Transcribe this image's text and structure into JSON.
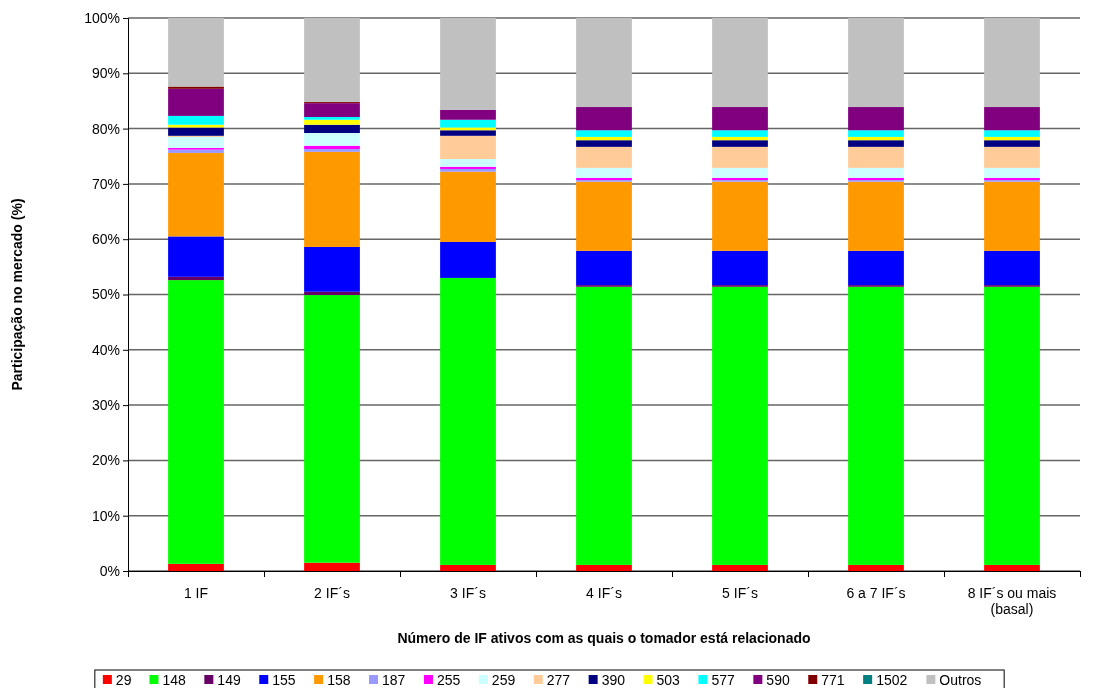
{
  "chart_data": {
    "type": "bar",
    "stacked": true,
    "xlabel": "Número de IF ativos com as quais o tomador está relacionado",
    "ylabel": "Participação no mercado (%)",
    "categories": [
      "1 IF",
      "2 IF´s",
      "3 IF´s",
      "4 IF´s",
      "5 IF´s",
      "6 a 7 IF´s",
      "8 IF´s ou mais\n(basal)"
    ],
    "ylim": [
      0,
      100
    ],
    "yticks": [
      {
        "value": 0,
        "label": "0%"
      },
      {
        "value": 10,
        "label": "10%"
      },
      {
        "value": 20,
        "label": "20%"
      },
      {
        "value": 30,
        "label": "30%"
      },
      {
        "value": 40,
        "label": "40%"
      },
      {
        "value": 50,
        "label": "50%"
      },
      {
        "value": 60,
        "label": "60%"
      },
      {
        "value": 70,
        "label": "70%"
      },
      {
        "value": 80,
        "label": "80%"
      },
      {
        "value": 90,
        "label": "90%"
      },
      {
        "value": 100,
        "label": "100%"
      }
    ],
    "grid": "y",
    "legend": "bottom",
    "series": [
      {
        "name": "29",
        "color": "#ff0000",
        "values": [
          1.3,
          1.5,
          1.1,
          1.1,
          1.1,
          1.1,
          1.1
        ]
      },
      {
        "name": "148",
        "color": "#00ff00",
        "values": [
          51.3,
          48.4,
          51.9,
          50.3,
          50.3,
          50.3,
          50.3
        ]
      },
      {
        "name": "149",
        "color": "#660066",
        "values": [
          0.6,
          0.6,
          0,
          0.3,
          0.3,
          0.3,
          0.3
        ]
      },
      {
        "name": "155",
        "color": "#0000ff",
        "values": [
          7.3,
          8.1,
          6.5,
          6.2,
          6.2,
          6.2,
          6.2
        ]
      },
      {
        "name": "158",
        "color": "#ff9900",
        "values": [
          15.1,
          17.2,
          12.7,
          12.5,
          12.5,
          12.5,
          12.5
        ]
      },
      {
        "name": "187",
        "color": "#9999ff",
        "values": [
          0.6,
          0.5,
          0.5,
          0.3,
          0.3,
          0.3,
          0.3
        ]
      },
      {
        "name": "255",
        "color": "#ff00ff",
        "values": [
          0.3,
          0.6,
          0.4,
          0.4,
          0.4,
          0.4,
          0.4
        ]
      },
      {
        "name": "259",
        "color": "#ccffff",
        "values": [
          2.0,
          2.3,
          1.4,
          1.8,
          1.8,
          1.8,
          1.8
        ]
      },
      {
        "name": "277",
        "color": "#ffcc99",
        "values": [
          0.2,
          0,
          4.2,
          3.8,
          3.8,
          3.8,
          3.8
        ]
      },
      {
        "name": "390",
        "color": "#000080",
        "values": [
          1.5,
          1.5,
          1.0,
          1.2,
          1.2,
          1.2,
          1.2
        ]
      },
      {
        "name": "503",
        "color": "#ffff00",
        "values": [
          0.5,
          0.9,
          0.5,
          0.6,
          0.6,
          0.6,
          0.6
        ]
      },
      {
        "name": "577",
        "color": "#00ffff",
        "values": [
          1.6,
          0.5,
          1.4,
          1.2,
          1.2,
          1.2,
          1.2
        ]
      },
      {
        "name": "590",
        "color": "#800080",
        "values": [
          4.9,
          2.5,
          1.8,
          4.2,
          4.2,
          4.2,
          4.2
        ]
      },
      {
        "name": "771",
        "color": "#800000",
        "values": [
          0.4,
          0.2,
          0,
          0,
          0,
          0,
          0
        ]
      },
      {
        "name": "1502",
        "color": "#008080",
        "values": [
          0,
          0,
          0,
          0,
          0,
          0,
          0
        ]
      },
      {
        "name": "Outros",
        "color": "#c0c0c0",
        "values": [
          12.4,
          15.2,
          16.6,
          16.1,
          16.1,
          16.1,
          16.1
        ]
      }
    ]
  }
}
